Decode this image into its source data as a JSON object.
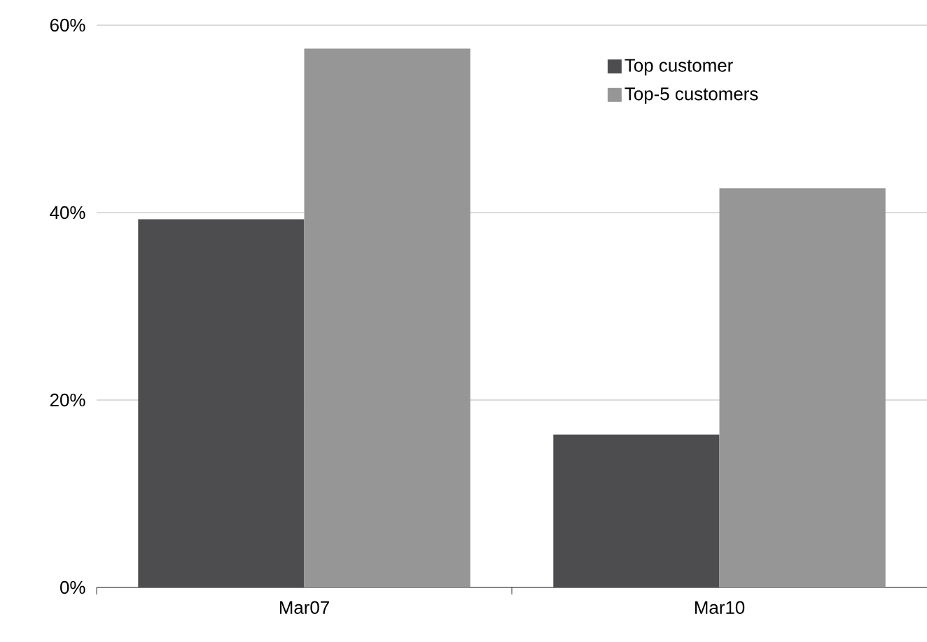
{
  "chart_data": {
    "type": "bar",
    "categories": [
      "Mar07",
      "Mar10"
    ],
    "series": [
      {
        "name": "Top customer",
        "color": "#4d4d4f",
        "values": [
          39.3,
          16.3
        ]
      },
      {
        "name": "Top-5 customers",
        "color": "#969696",
        "values": [
          57.5,
          42.6
        ]
      }
    ],
    "ylim": [
      0,
      60
    ],
    "yticks": [
      {
        "value": 0,
        "label": "0%"
      },
      {
        "value": 20,
        "label": "20%"
      },
      {
        "value": 40,
        "label": "40%"
      },
      {
        "value": 60,
        "label": "60%"
      }
    ],
    "grid": "y",
    "legend": "top right"
  }
}
